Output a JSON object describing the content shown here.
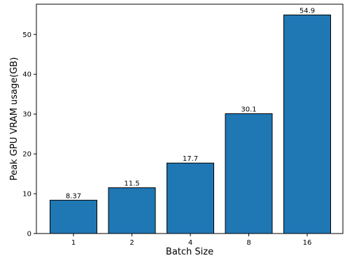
{
  "chart_data": {
    "type": "bar",
    "title": "",
    "xlabel": "Batch Size",
    "ylabel": "Peak GPU VRAM usage(GB)",
    "categories": [
      "1",
      "2",
      "4",
      "8",
      "16"
    ],
    "values": [
      8.37,
      11.5,
      17.7,
      30.1,
      54.9
    ],
    "data_labels": [
      "8.37",
      "11.5",
      "17.7",
      "30.1",
      "54.9"
    ],
    "ylim": [
      0,
      57.6
    ],
    "yticks": [
      0,
      10,
      20,
      30,
      40,
      50
    ],
    "grid": false,
    "bar_color": "#1f77b4",
    "bar_edge_color": "#000000"
  }
}
